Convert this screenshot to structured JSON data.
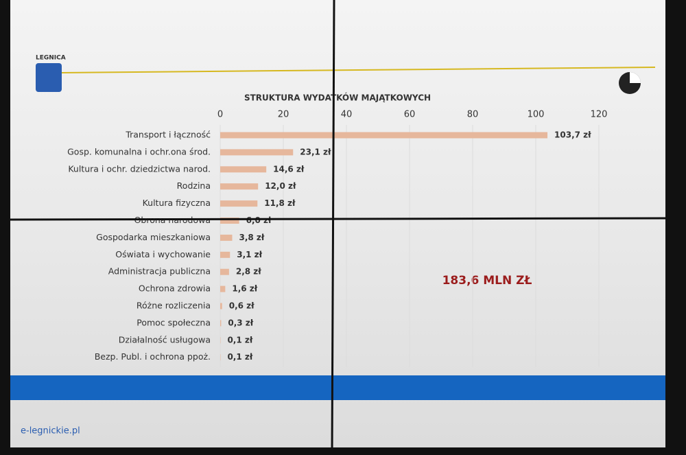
{
  "header": {
    "logo": "LEGNICA"
  },
  "footer": {
    "watermark": "e-legnickie.pl"
  },
  "chart_data": {
    "type": "bar",
    "orientation": "horizontal",
    "title": "STRUKTURA WYDATKÓW MAJĄTKOWYCH",
    "annotation": "183,6 MLN ZŁ",
    "categories": [
      "Transport i łączność",
      "Gosp. komunalna i ochr.ona środ.",
      "Kultura i ochr. dziedzictwa narod.",
      "Rodzina",
      "Kultura fizyczna",
      "Obrona narodowa",
      "Gospodarka mieszkaniowa",
      "Oświata i wychowanie",
      "Administracja publiczna",
      "Ochrona zdrowia",
      "Różne rozliczenia",
      "Pomoc społeczna",
      "Działalność usługowa",
      "Bezp. Publ. i ochrona ppoż."
    ],
    "values": [
      103.7,
      23.1,
      14.6,
      12.0,
      11.8,
      6.0,
      3.8,
      3.1,
      2.8,
      1.6,
      0.6,
      0.3,
      0.1,
      0.1
    ],
    "value_labels": [
      "103,7 zł",
      "23,1 zł",
      "14,6 zł",
      "12,0 zł",
      "11,8 zł",
      "6,0 zł",
      "3,8 zł",
      "3,1 zł",
      "2,8 zł",
      "1,6 zł",
      "0,6 zł",
      "0,3 zł",
      "0,1 zł",
      "0,1 zł"
    ],
    "color": "#e6b79c",
    "xlim": [
      0,
      120
    ],
    "xticks": [
      0,
      20,
      40,
      60,
      80,
      100,
      120
    ],
    "grid": true
  }
}
